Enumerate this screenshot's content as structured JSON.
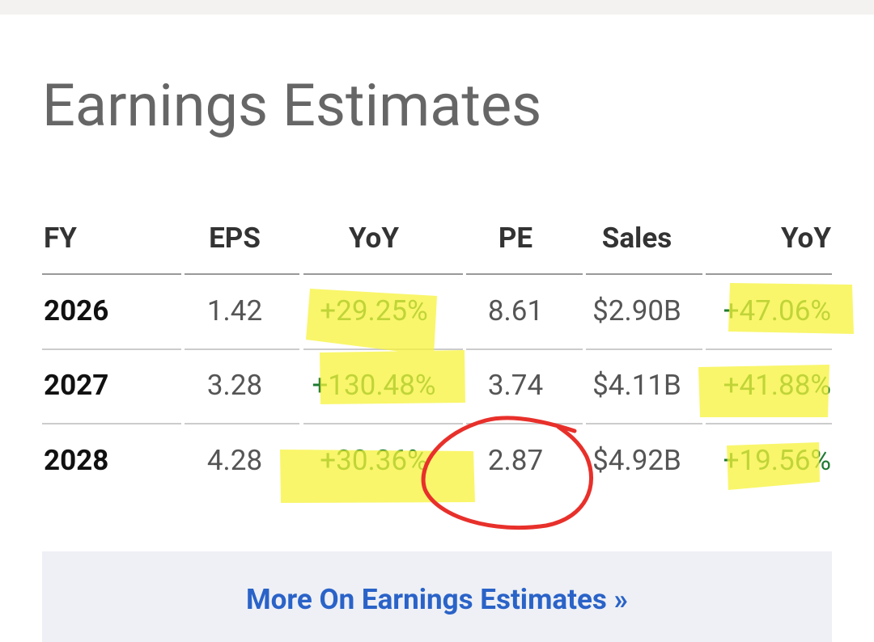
{
  "header": {
    "title": "Earnings Estimates"
  },
  "table": {
    "columns": [
      "FY",
      "EPS",
      "YoY",
      "PE",
      "Sales",
      "YoY"
    ],
    "rows": [
      [
        "2026",
        "1.42",
        "+29.25%",
        "8.61",
        "$2.90B",
        "+47.06%"
      ],
      [
        "2027",
        "3.28",
        "+130.48%",
        "3.74",
        "$4.11B",
        "+41.88%"
      ],
      [
        "2028",
        "4.28",
        "+30.36%",
        "2.87",
        "$4.92B",
        "+19.56%"
      ]
    ]
  },
  "link": {
    "text": "More On Earnings Estimates »"
  }
}
